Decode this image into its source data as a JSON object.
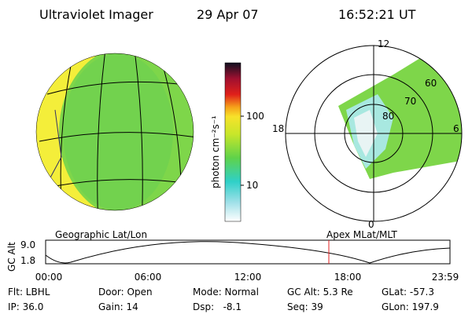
{
  "header": {
    "instrument": "Ultraviolet Imager",
    "date": "29 Apr 07",
    "time": "16:52:21 UT"
  },
  "colorbar": {
    "label": "photon cm⁻²s⁻¹",
    "ticks": [
      "100",
      "10"
    ]
  },
  "polar": {
    "mlat_labels": [
      "60",
      "70",
      "80"
    ],
    "mlt_labels": [
      "12",
      "18",
      "6",
      "0"
    ]
  },
  "panel_titles": [
    "Geographic Lat/Lon",
    "Apex MLat/MLT"
  ],
  "altitude_plot": {
    "ylabel": "GC Alt",
    "yticks": [
      "9.0",
      "1.8"
    ],
    "xticks": [
      "00:00",
      "06:00",
      "12:00",
      "18:00",
      "23:59"
    ]
  },
  "info": [
    [
      "Flt: LBHL",
      "Door: Open",
      "Mode: Normal",
      "GC Alt: 5.3 Re",
      "GLat: -57.3"
    ],
    [
      "IP: 36.0",
      "Gain: 14",
      "Dsp:   -8.1",
      "Seq: 39",
      "GLon: 197.9"
    ]
  ]
}
